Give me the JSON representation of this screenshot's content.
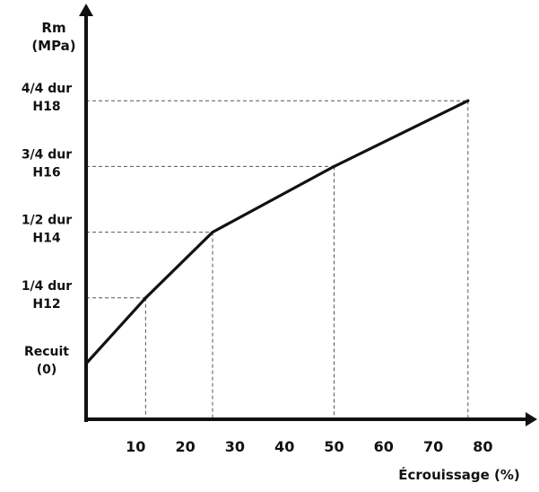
{
  "chart_data": {
    "type": "line",
    "ylabel": [
      "Rm",
      "(MPa)"
    ],
    "xlabel": "Écrouissage (%)",
    "xlim": [
      0,
      87
    ],
    "x_ticks": [
      10,
      20,
      30,
      40,
      50,
      60,
      70,
      80
    ],
    "y_levels": [
      {
        "lines": [
          "Recuit",
          "(0)"
        ],
        "value": 0
      },
      {
        "lines": [
          "1/4 dur",
          "H12"
        ],
        "value": 1
      },
      {
        "lines": [
          "1/2 dur",
          "H14"
        ],
        "value": 2
      },
      {
        "lines": [
          "3/4 dur",
          "H16"
        ],
        "value": 3
      },
      {
        "lines": [
          "4/4 dur",
          "H18"
        ],
        "value": 4
      }
    ],
    "series": [
      {
        "x": [
          0,
          12,
          25.5,
          50,
          77
        ],
        "y": [
          0,
          1,
          2,
          3,
          4
        ]
      }
    ],
    "reference_points": [
      {
        "x": 12,
        "y": 1
      },
      {
        "x": 25.5,
        "y": 2
      },
      {
        "x": 50,
        "y": 3
      },
      {
        "x": 77,
        "y": 4
      }
    ],
    "line_color": "#111111",
    "grid": false
  }
}
